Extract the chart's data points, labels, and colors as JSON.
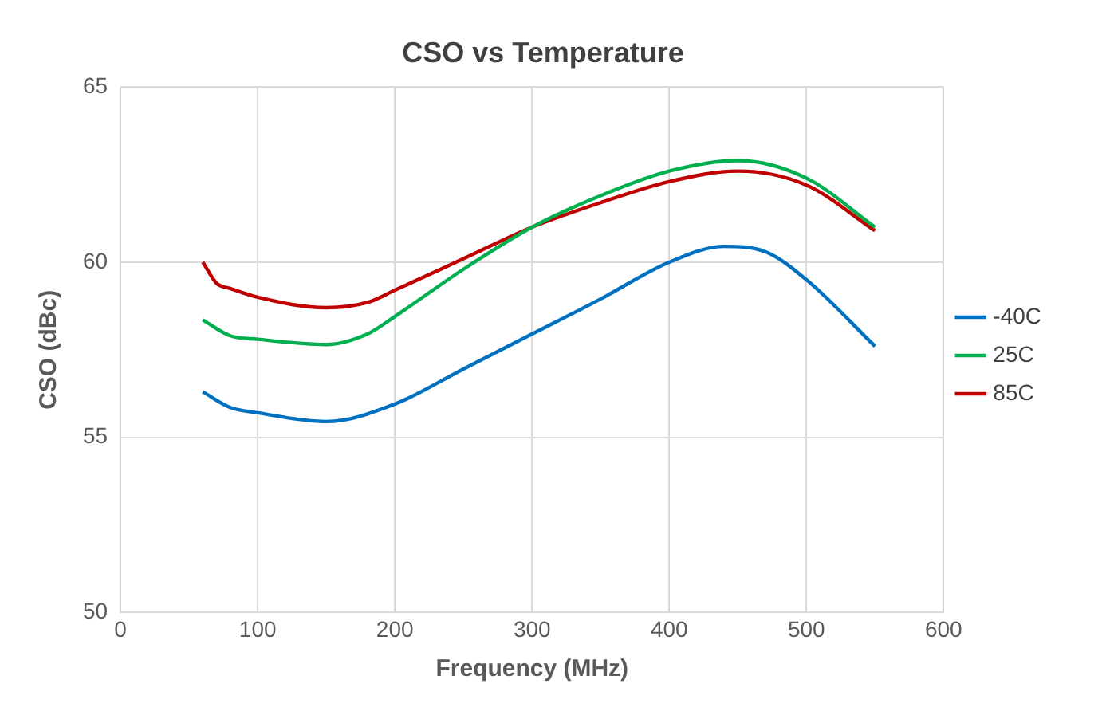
{
  "chart_data": {
    "type": "line",
    "title": "CSO vs Temperature",
    "xlabel": "Frequency (MHz)",
    "ylabel": "CSO (dBc)",
    "xlim": [
      0,
      600
    ],
    "xticks": [
      0,
      100,
      200,
      300,
      400,
      500,
      600
    ],
    "ylim": [
      50,
      65
    ],
    "yticks": [
      50,
      55,
      60,
      65
    ],
    "grid": true,
    "legend": "right",
    "marker": "none",
    "line_style": "solid",
    "series": [
      {
        "name": "-40C",
        "color": "#0070c0",
        "x": [
          60,
          80,
          100,
          150,
          200,
          250,
          300,
          350,
          400,
          440,
          470,
          500,
          550
        ],
        "values": [
          56.3,
          55.85,
          55.7,
          55.45,
          55.95,
          56.95,
          57.95,
          58.95,
          60.0,
          60.45,
          60.3,
          59.5,
          57.6
        ]
      },
      {
        "name": "25C",
        "color": "#00b050",
        "x": [
          60,
          80,
          100,
          150,
          180,
          200,
          250,
          300,
          350,
          400,
          450,
          500,
          550
        ],
        "values": [
          58.35,
          57.9,
          57.8,
          57.65,
          57.95,
          58.45,
          59.8,
          61.0,
          61.9,
          62.6,
          62.9,
          62.4,
          61.0
        ]
      },
      {
        "name": "85C",
        "color": "#c00000",
        "x": [
          60,
          70,
          80,
          100,
          150,
          180,
          200,
          250,
          300,
          350,
          400,
          450,
          500,
          550
        ],
        "values": [
          60.0,
          59.4,
          59.25,
          59.0,
          58.7,
          58.85,
          59.2,
          60.1,
          61.0,
          61.7,
          62.3,
          62.6,
          62.2,
          60.9
        ]
      }
    ]
  }
}
